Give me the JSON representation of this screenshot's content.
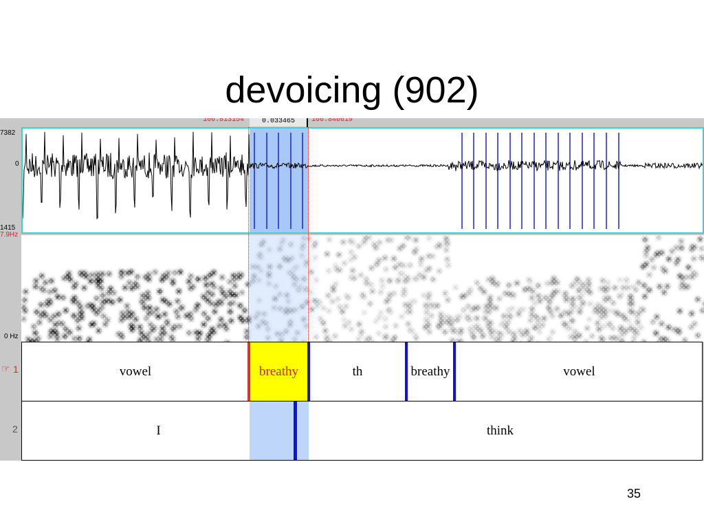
{
  "slide": {
    "title": "devoicing (902)",
    "page_number": "35"
  },
  "praat": {
    "time_bar": {
      "start_time": "166.813154",
      "selection_duration": "0.033465",
      "end_time": "166.846619"
    },
    "waveform": {
      "max_label": "7382",
      "zero_label": "0",
      "min_label": "1415"
    },
    "spectrogram": {
      "top_label": "7.9Hz",
      "bottom_label": "0 Hz"
    },
    "tier1": {
      "name": "1",
      "pointer_glyph": "☞",
      "intervals": [
        "vowel",
        "breathy",
        "th",
        "breathy",
        "vowel"
      ]
    },
    "tier2": {
      "name": "2",
      "intervals": [
        "I",
        "think"
      ]
    },
    "colors": {
      "selection": "#a8c8f8",
      "boundary": "#1010e0",
      "selected_interval": "#ffff00",
      "waveform_border": "#40d0d0"
    }
  }
}
